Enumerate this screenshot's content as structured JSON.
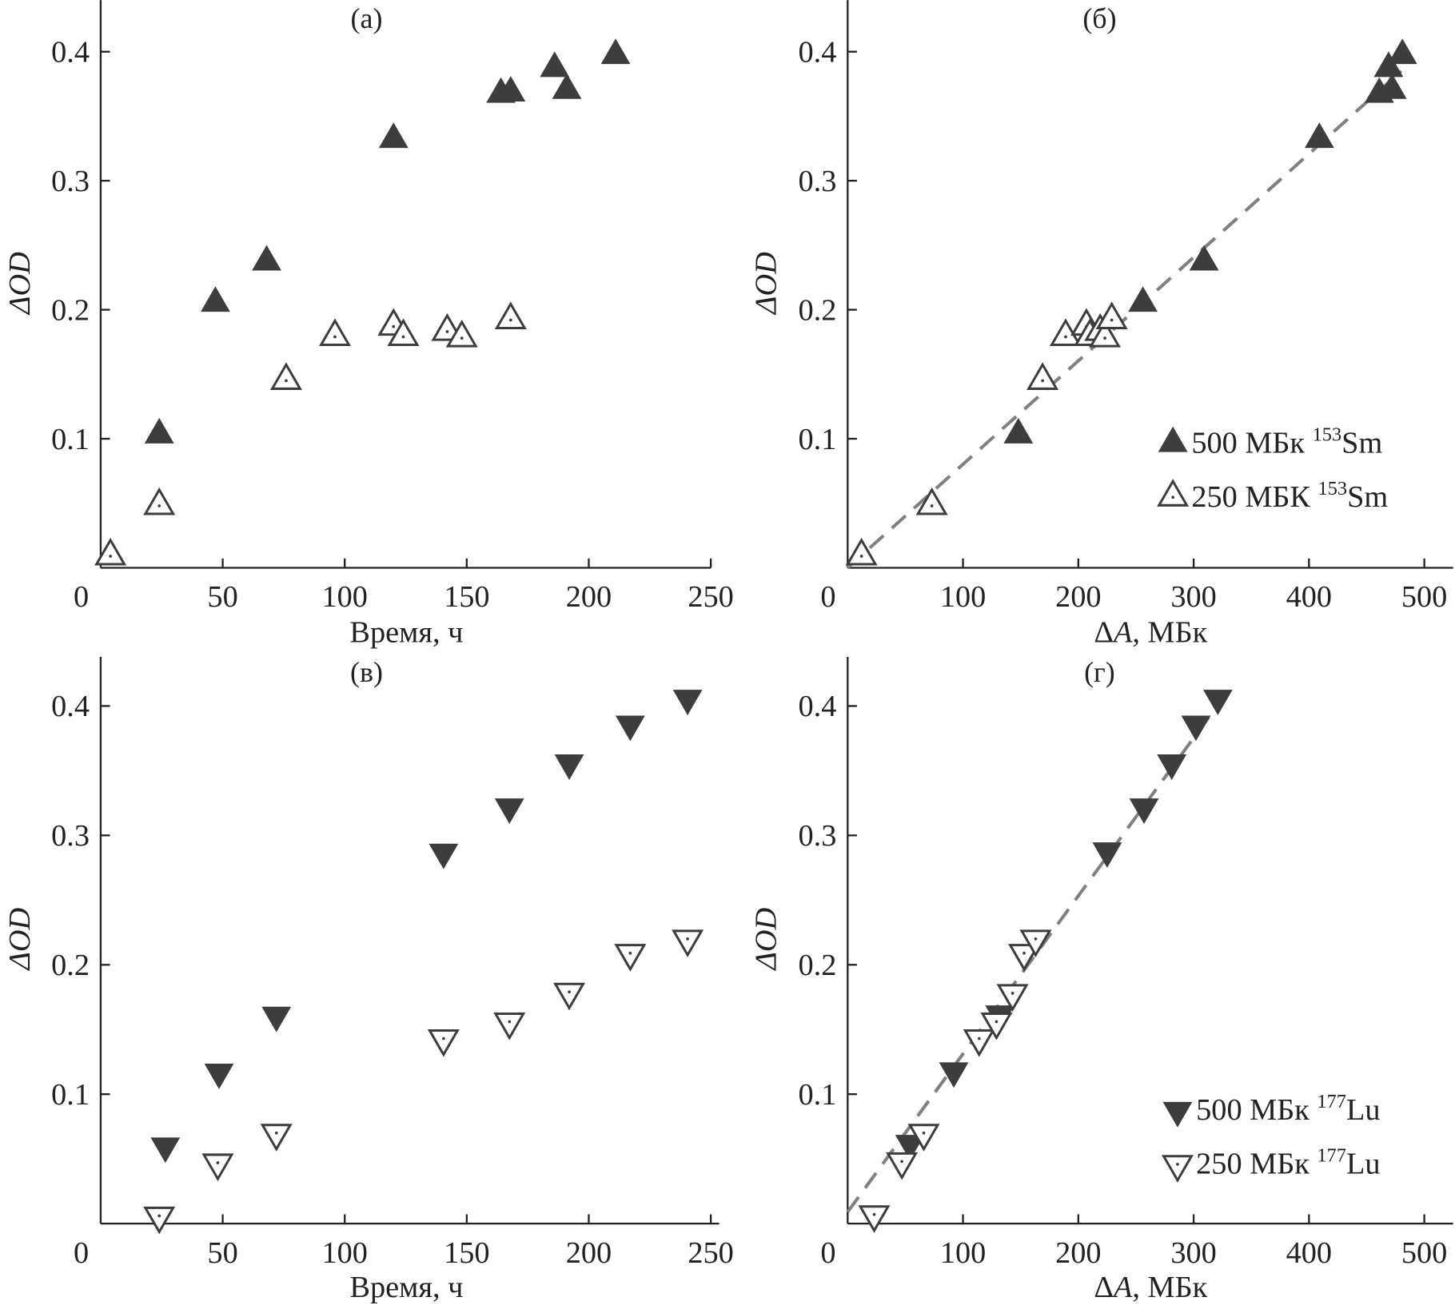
{
  "chart_data": [
    {
      "type": "scatter",
      "title": "(a)",
      "xlabel": "Время, ч",
      "ylabel": "ΔOD",
      "xlim": [
        0,
        250
      ],
      "ylim": [
        0,
        0.44
      ],
      "xticks": [
        "0",
        "50",
        "100",
        "150",
        "200",
        "250"
      ],
      "yticks": [
        "0.1",
        "0.2",
        "0.3",
        "0.4"
      ],
      "grid": false,
      "series": [
        {
          "marker": "triangle-up-filled",
          "color": "#3d3d3d",
          "x": [
            24,
            47,
            68,
            120,
            164,
            168,
            186,
            191,
            211
          ],
          "y": [
            0.103,
            0.205,
            0.237,
            0.332,
            0.367,
            0.368,
            0.387,
            0.37,
            0.397
          ]
        },
        {
          "marker": "triangle-up-open",
          "color": "#3d3d3d",
          "x": [
            4,
            24,
            76,
            96,
            120,
            124,
            142,
            148,
            168
          ],
          "y": [
            0.009,
            0.048,
            0.145,
            0.179,
            0.187,
            0.179,
            0.183,
            0.178,
            0.192
          ]
        }
      ]
    },
    {
      "type": "scatter",
      "title": "(б)",
      "xlabel_prefix": "Δ",
      "xlabel_var": "A",
      "xlabel_unit": ", МБк",
      "ylabel": "ΔOD",
      "xlim": [
        0,
        525
      ],
      "ylim": [
        0,
        0.44
      ],
      "xticks": [
        "0",
        "100",
        "200",
        "300",
        "400",
        "500"
      ],
      "yticks": [
        "0.1",
        "0.2",
        "0.3",
        "0.4"
      ],
      "grid": false,
      "legend_position": "bottom-right",
      "fit_line": {
        "style": "dashed",
        "color": "#808080",
        "x": [
          0,
          480
        ],
        "y": [
          0.0,
          0.385
        ]
      },
      "series": [
        {
          "name_main": "500 МБк ",
          "name_sup": "153",
          "name_el": "Sm",
          "marker": "triangle-up-filled",
          "color": "#3d3d3d",
          "x": [
            148,
            256,
            309,
            409,
            461,
            472,
            469,
            481
          ],
          "y": [
            0.103,
            0.205,
            0.237,
            0.332,
            0.367,
            0.37,
            0.387,
            0.397
          ]
        },
        {
          "name_main": "250 МБК ",
          "name_sup": "153",
          "name_el": "Sm",
          "marker": "triangle-up-open",
          "color": "#3d3d3d",
          "x": [
            12,
            73,
            169,
            189,
            207,
            210,
            219,
            223,
            229
          ],
          "y": [
            0.009,
            0.048,
            0.145,
            0.179,
            0.187,
            0.179,
            0.183,
            0.178,
            0.192
          ]
        }
      ]
    },
    {
      "type": "scatter",
      "title": "(в)",
      "xlabel": "Время, ч",
      "ylabel": "ΔOD",
      "xlim": [
        0,
        250
      ],
      "ylim": [
        0,
        0.438
      ],
      "xticks": [
        "0",
        "50",
        "100",
        "150",
        "200",
        "250"
      ],
      "yticks": [
        "0.1",
        "0.2",
        "0.3",
        "0.4"
      ],
      "grid": false,
      "series": [
        {
          "marker": "triangle-down-filled",
          "color": "#3d3d3d",
          "x": [
            26.5,
            48.5,
            72,
            140.5,
            167.5,
            192,
            217,
            240.5
          ],
          "y": [
            0.06,
            0.117,
            0.161,
            0.287,
            0.322,
            0.356,
            0.386,
            0.406
          ]
        },
        {
          "marker": "triangle-down-open",
          "color": "#3d3d3d",
          "x": [
            24,
            48,
            72,
            140.5,
            167.5,
            192,
            217,
            240.5
          ],
          "y": [
            0.006,
            0.047,
            0.07,
            0.143,
            0.156,
            0.179,
            0.209,
            0.22
          ]
        }
      ]
    },
    {
      "type": "scatter",
      "title": "(г)",
      "xlabel_prefix": "Δ",
      "xlabel_var": "A",
      "xlabel_unit": ", МБк",
      "ylabel": "ΔOD",
      "xlim": [
        0,
        525
      ],
      "ylim": [
        0,
        0.438
      ],
      "xticks": [
        "0",
        "100",
        "200",
        "300",
        "400",
        "500"
      ],
      "yticks": [
        "0.1",
        "0.2",
        "0.3",
        "0.4"
      ],
      "grid": false,
      "legend_position": "bottom-right",
      "fit_line": {
        "style": "dashed",
        "color": "#808080",
        "x": [
          0,
          330
        ],
        "y": [
          0.009,
          0.412
        ]
      },
      "series": [
        {
          "name_main": "500 МБк ",
          "name_sup": "177",
          "name_el": "Lu",
          "marker": "triangle-down-filled",
          "color": "#3d3d3d",
          "x": [
            54,
            92,
            132,
            225,
            257,
            281,
            302,
            321
          ],
          "y": [
            0.062,
            0.118,
            0.162,
            0.288,
            0.322,
            0.356,
            0.386,
            0.406
          ]
        },
        {
          "name_main": "250 МБк ",
          "name_sup": "177",
          "name_el": "Lu",
          "marker": "triangle-down-open",
          "color": "#3d3d3d",
          "x": [
            23,
            47,
            66,
            114,
            129,
            143,
            153,
            163
          ],
          "y": [
            0.007,
            0.048,
            0.07,
            0.143,
            0.156,
            0.178,
            0.209,
            0.22
          ]
        }
      ]
    }
  ]
}
